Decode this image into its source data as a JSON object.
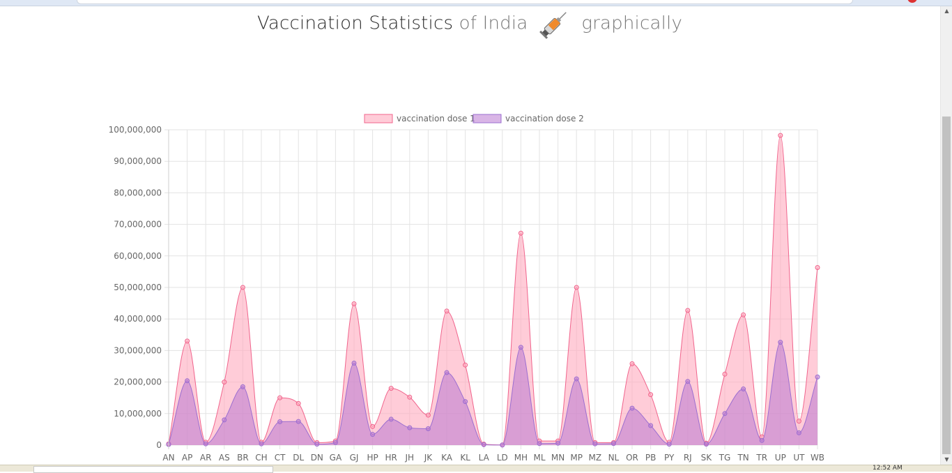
{
  "page": {
    "title_strong": "Vaccination Statistics",
    "title_light_1": "of India",
    "title_light_2": "graphically",
    "title_icon": "syringe-icon",
    "clock": "12:52 AM"
  },
  "colors": {
    "dose1_line": "#f0648c",
    "dose1_fill": "rgba(255,170,190,0.6)",
    "dose2_line": "#9b6fd0",
    "dose2_fill": "rgba(185,120,210,0.55)"
  },
  "chart_data": {
    "type": "line",
    "title": "",
    "xlabel": "",
    "ylabel": "",
    "ylim": [
      0,
      100000000
    ],
    "yticks": [
      0,
      10000000,
      20000000,
      30000000,
      40000000,
      50000000,
      60000000,
      70000000,
      80000000,
      90000000,
      100000000
    ],
    "grid": true,
    "legend_position": "top",
    "categories": [
      "AN",
      "AP",
      "AR",
      "AS",
      "BR",
      "CH",
      "CT",
      "DL",
      "DN",
      "GA",
      "GJ",
      "HP",
      "HR",
      "JH",
      "JK",
      "KA",
      "KL",
      "LA",
      "LD",
      "MH",
      "ML",
      "MN",
      "MP",
      "MZ",
      "NL",
      "OR",
      "PB",
      "PY",
      "RJ",
      "SK",
      "TG",
      "TN",
      "TR",
      "UP",
      "UT",
      "WB"
    ],
    "series": [
      {
        "name": "vaccination dose 1",
        "values": [
          400000,
          33000000,
          900000,
          20000000,
          50000000,
          900000,
          15000000,
          13200000,
          800000,
          1300000,
          44800000,
          5900000,
          18000000,
          15200000,
          9500000,
          42500000,
          25400000,
          300000,
          60000,
          67200000,
          1300000,
          1300000,
          50000000,
          800000,
          800000,
          25800000,
          16000000,
          900000,
          42700000,
          600000,
          22500000,
          41300000,
          2600000,
          98200000,
          7600000,
          56300000
        ]
      },
      {
        "name": "vaccination dose 2",
        "values": [
          200000,
          20400000,
          400000,
          8000000,
          18500000,
          400000,
          7400000,
          7500000,
          300000,
          800000,
          26000000,
          3400000,
          8200000,
          5500000,
          5200000,
          23000000,
          13800000,
          150000,
          30000,
          31000000,
          500000,
          600000,
          21000000,
          400000,
          500000,
          11700000,
          6200000,
          300000,
          20200000,
          300000,
          10000000,
          17800000,
          1500000,
          32600000,
          3900000,
          21600000
        ]
      }
    ]
  }
}
